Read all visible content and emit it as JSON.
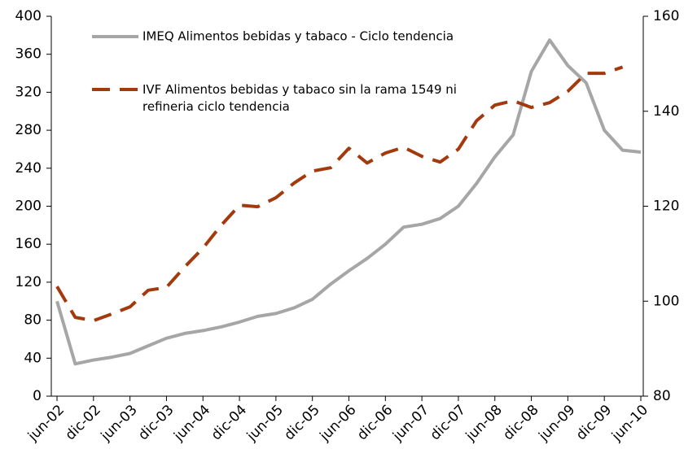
{
  "chart_data": {
    "type": "line",
    "categories": [
      "jun-02",
      null,
      "dic-02",
      null,
      "jun-03",
      null,
      "dic-03",
      null,
      "jun-04",
      null,
      "dic-04",
      null,
      "jun-05",
      null,
      "dic-05",
      null,
      "jun-06",
      null,
      "dic-06",
      null,
      "jun-07",
      null,
      "dic-07",
      null,
      "jun-08",
      null,
      "dic-08",
      null,
      "jun-09",
      null,
      "dic-09",
      null,
      "jun-10"
    ],
    "series": [
      {
        "name": "IMEQ Alimentos bebidas y tabaco - Ciclo tendencia",
        "color": "#a6a6a6",
        "axis": "y",
        "values": [
          100,
          34,
          38,
          41,
          45,
          53,
          61,
          66,
          69,
          73,
          78,
          84,
          87,
          93,
          102,
          118,
          132,
          145,
          160,
          178,
          181,
          187,
          200,
          224,
          252,
          275,
          342,
          375,
          348,
          330,
          280,
          259,
          257
        ]
      },
      {
        "name": "IVF Alimentos bebidas y tabaco sin la rama 1549 ni refineria ciclo tendencia",
        "color": "#a33a0e",
        "axis": "y2",
        "values": [
          103.1,
          96.6,
          95.9,
          97.3,
          98.8,
          102.3,
          102.9,
          107.2,
          111.2,
          116,
          120.2,
          119.9,
          121.8,
          124.9,
          127.4,
          128.1,
          132.2,
          129.1,
          131.2,
          132.4,
          130.5,
          129.3,
          132,
          138,
          141.3,
          142.2,
          140.8,
          141.8,
          144.2,
          148,
          148,
          149.3,
          null
        ]
      }
    ],
    "ylim": [
      0,
      400
    ],
    "yticks": [
      0,
      40,
      80,
      120,
      160,
      200,
      240,
      280,
      320,
      360,
      400
    ],
    "y2lim": [
      80,
      160
    ],
    "y2ticks": [
      80,
      100,
      120,
      140,
      160
    ],
    "legend": "top-left",
    "grid": false
  }
}
